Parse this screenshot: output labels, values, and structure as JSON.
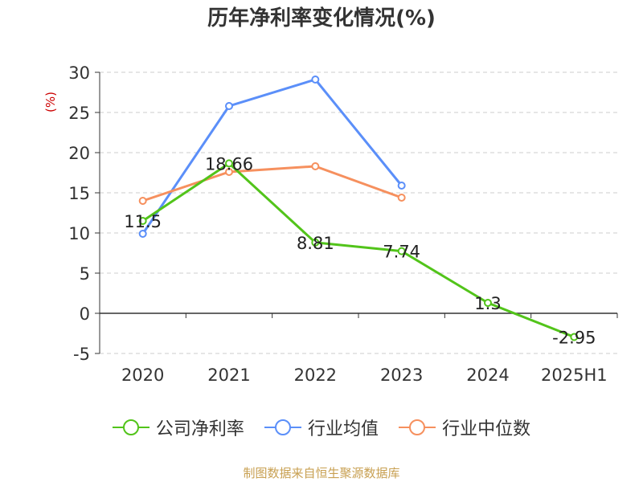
{
  "title": "历年净利率变化情况(%)",
  "source_text": "制图数据来自恒生聚源数据库",
  "colors": {
    "company": "#52c41a",
    "industry_avg": "#5b8ff9",
    "industry_median": "#f6905e",
    "axis": "#333333",
    "grid": "#cccccc",
    "unit": "#cc0000"
  },
  "legend": [
    {
      "key": "company",
      "label": "公司净利率"
    },
    {
      "key": "industry_avg",
      "label": "行业均值"
    },
    {
      "key": "industry_median",
      "label": "行业中位数"
    }
  ],
  "chart_data": {
    "type": "line",
    "categories": [
      "2020",
      "2021",
      "2022",
      "2023",
      "2024",
      "2025H1"
    ],
    "ylabel": "(%)",
    "ylim": [
      -5,
      30
    ],
    "yticks": [
      -5,
      0,
      5,
      10,
      15,
      20,
      25,
      30
    ],
    "grid": true,
    "legend_position": "bottom",
    "series": [
      {
        "key": "company",
        "name": "公司净利率",
        "values": [
          11.5,
          18.66,
          8.81,
          7.74,
          1.3,
          -2.95
        ],
        "labels": [
          "11.5",
          "18.66",
          "8.81",
          "7.74",
          "1.3",
          "-2.95"
        ]
      },
      {
        "key": "industry_avg",
        "name": "行业均值",
        "values": [
          9.9,
          25.8,
          29.1,
          15.9,
          null,
          null
        ]
      },
      {
        "key": "industry_median",
        "name": "行业中位数",
        "values": [
          14.0,
          17.6,
          18.3,
          14.4,
          null,
          null
        ]
      }
    ]
  }
}
